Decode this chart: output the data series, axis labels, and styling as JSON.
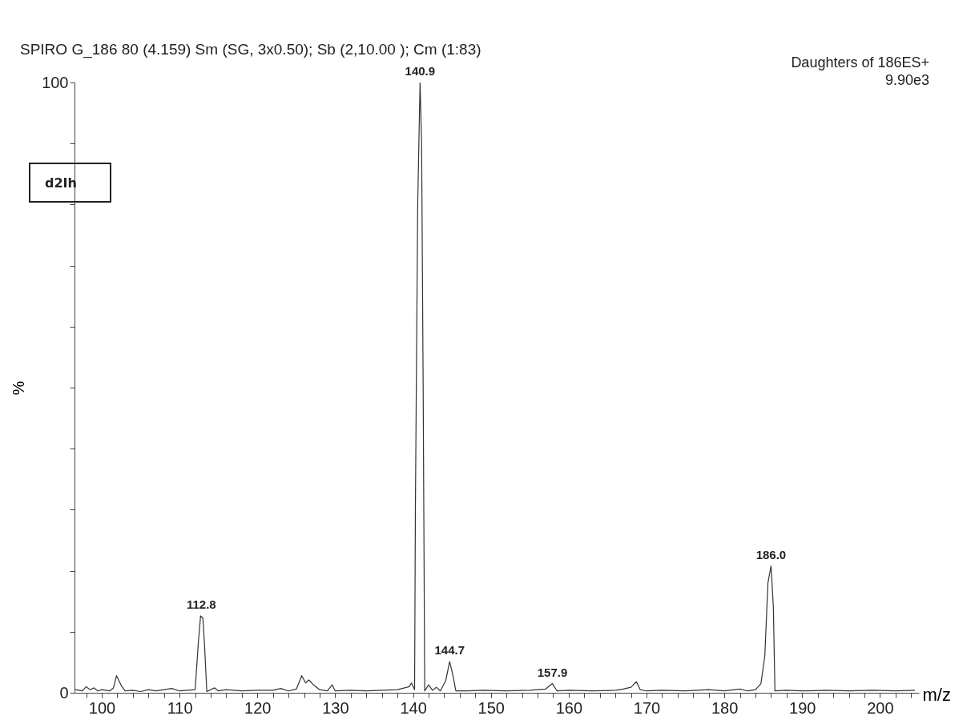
{
  "chart_data": {
    "type": "line",
    "title": "SPIRO G_186  80 (4.159) Sm (SG, 3x0.50); Sb (2,10.00 ); Cm (1:83)",
    "xlabel": "m/z",
    "ylabel": "%",
    "annotations": [
      "Daughters of 186ES+",
      "9.90e3",
      "d2Ih",
      {
        "text": "112.8",
        "x": 112.8,
        "y": 12.6
      },
      {
        "text": "140.9",
        "x": 140.9,
        "y": 100
      },
      {
        "text": "144.7",
        "x": 144.7,
        "y": 5.1
      },
      {
        "text": "157.9",
        "x": 157.9,
        "y": 1.5
      },
      {
        "text": "186.0",
        "x": 186.0,
        "y": 20.8
      }
    ],
    "x": [
      96.6,
      97.5,
      98,
      98.5,
      99,
      99.5,
      100,
      101,
      101.5,
      101.9,
      102.5,
      103,
      104,
      105,
      106,
      107,
      108,
      109,
      110,
      111,
      112,
      112.4,
      112.7,
      113.0,
      113.2,
      113.5,
      114.5,
      115,
      116,
      118,
      120,
      122,
      123,
      124,
      125,
      125.7,
      126.2,
      126.6,
      127.2,
      128,
      129,
      129.6,
      130,
      132,
      134,
      136,
      138,
      139.5,
      139.8,
      140.2,
      140.3,
      140.6,
      140.9,
      141.1,
      141.3,
      141.5,
      142,
      142.5,
      143,
      143.5,
      144.2,
      144.7,
      145.1,
      145.5,
      147,
      149,
      152,
      155,
      157,
      157.9,
      158.5,
      160,
      163,
      166,
      167,
      168,
      168.7,
      169.2,
      170,
      172,
      175,
      178,
      180,
      182,
      183,
      184,
      184.7,
      185.2,
      185.6,
      186.0,
      186.3,
      186.5,
      188,
      190,
      193,
      196,
      199,
      202,
      204.5
    ],
    "series": [
      {
        "color": "#333333",
        "values": [
          0.5,
          0.3,
          1.0,
          0.5,
          0.8,
          0.3,
          0.5,
          0.3,
          0.8,
          2.8,
          1.2,
          0.3,
          0.4,
          0.2,
          0.5,
          0.3,
          0.5,
          0.7,
          0.3,
          0.4,
          0.5,
          8,
          12.6,
          12.2,
          8,
          0.2,
          0.8,
          0.3,
          0.5,
          0.3,
          0.4,
          0.4,
          0.7,
          0.3,
          0.6,
          2.8,
          1.6,
          2.1,
          1.3,
          0.5,
          0.3,
          1.3,
          0.3,
          0.4,
          0.3,
          0.4,
          0.5,
          1.0,
          1.6,
          0.5,
          30,
          80,
          100,
          90,
          50,
          0.3,
          1.3,
          0.4,
          0.9,
          0.3,
          2,
          5.1,
          3,
          0.3,
          0.3,
          0.4,
          0.3,
          0.4,
          0.6,
          1.5,
          0.3,
          0.4,
          0.3,
          0.4,
          0.6,
          0.9,
          1.8,
          0.5,
          0.3,
          0.4,
          0.3,
          0.5,
          0.3,
          0.6,
          0.3,
          0.5,
          1.5,
          6,
          18,
          20.8,
          14,
          0.3,
          0.4,
          0.3,
          0.4,
          0.3,
          0.4,
          0.3,
          0.4
        ]
      }
    ],
    "xlim": [
      96.5,
      205
    ],
    "ylim": [
      0,
      100
    ],
    "xticks": [
      {
        "value": 98,
        "label": null
      },
      100,
      {
        "value": 102,
        "label": null
      },
      {
        "value": 104,
        "label": null
      },
      {
        "value": 106,
        "label": null
      },
      {
        "value": 108,
        "label": null
      },
      110,
      {
        "value": 112,
        "label": null
      },
      {
        "value": 114,
        "label": null
      },
      {
        "value": 116,
        "label": null
      },
      {
        "value": 118,
        "label": null
      },
      120,
      {
        "value": 122,
        "label": null
      },
      {
        "value": 124,
        "label": null
      },
      {
        "value": 126,
        "label": null
      },
      {
        "value": 128,
        "label": null
      },
      130,
      {
        "value": 132,
        "label": null
      },
      {
        "value": 134,
        "label": null
      },
      {
        "value": 136,
        "label": null
      },
      {
        "value": 138,
        "label": null
      },
      140,
      {
        "value": 142,
        "label": null
      },
      {
        "value": 144,
        "label": null
      },
      {
        "value": 146,
        "label": null
      },
      {
        "value": 148,
        "label": null
      },
      150,
      {
        "value": 152,
        "label": null
      },
      {
        "value": 154,
        "label": null
      },
      {
        "value": 156,
        "label": null
      },
      {
        "value": 158,
        "label": null
      },
      160,
      {
        "value": 162,
        "label": null
      },
      {
        "value": 164,
        "label": null
      },
      {
        "value": 166,
        "label": null
      },
      {
        "value": 168,
        "label": null
      },
      170,
      {
        "value": 172,
        "label": null
      },
      {
        "value": 174,
        "label": null
      },
      {
        "value": 176,
        "label": null
      },
      {
        "value": 178,
        "label": null
      },
      180,
      {
        "value": 182,
        "label": null
      },
      {
        "value": 184,
        "label": null
      },
      {
        "value": 186,
        "label": null
      },
      {
        "value": 188,
        "label": null
      },
      190,
      {
        "value": 192,
        "label": null
      },
      {
        "value": 194,
        "label": null
      },
      {
        "value": 196,
        "label": null
      },
      {
        "value": 198,
        "label": null
      },
      200,
      {
        "value": 202,
        "label": null
      },
      {
        "value": 204,
        "label": null
      }
    ],
    "yticks": [
      0,
      {
        "value": 10,
        "label": null
      },
      {
        "value": 20,
        "label": null
      },
      {
        "value": 30,
        "label": null
      },
      {
        "value": 40,
        "label": null
      },
      {
        "value": 50,
        "label": null
      },
      {
        "value": 60,
        "label": null
      },
      {
        "value": 70,
        "label": null
      },
      {
        "value": 80,
        "label": null
      },
      {
        "value": 90,
        "label": null
      },
      100
    ],
    "grid": false,
    "marker": "none",
    "line_style": "solid"
  }
}
